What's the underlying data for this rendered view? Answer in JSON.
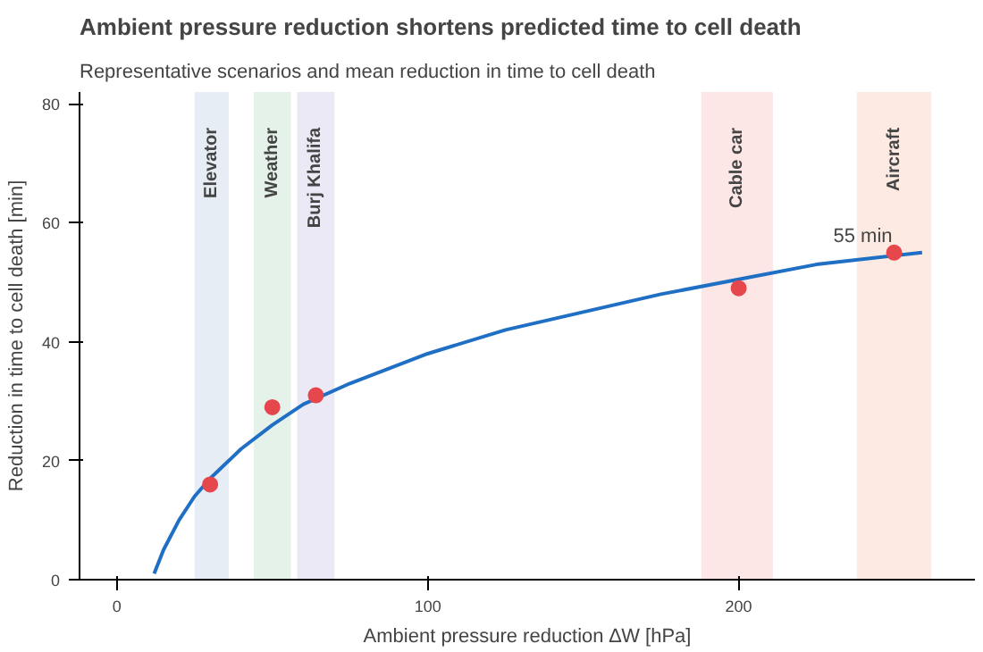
{
  "chart_data": {
    "type": "line",
    "title": "Ambient pressure reduction shortens predicted time to cell death",
    "subtitle": "Representative scenarios and mean reduction in time to cell death",
    "xlabel": "Ambient pressure reduction ∆W [hPa]",
    "ylabel": "Reduction in time to cell death [min]",
    "series": [
      {
        "color": "#1f6fc5",
        "x": [
          12,
          15,
          20,
          25,
          30,
          40,
          50,
          60,
          75,
          100,
          125,
          150,
          175,
          200,
          225,
          259
        ],
        "values": [
          1,
          5,
          10,
          14,
          17,
          22,
          26,
          29.5,
          33,
          38,
          42,
          45,
          48,
          50.5,
          53,
          55
        ]
      },
      {
        "type": "scatter",
        "marker": "circle",
        "color": "#e5474d",
        "x": [
          30,
          50,
          64,
          200,
          250
        ],
        "values": [
          16,
          29,
          31,
          49,
          55
        ]
      }
    ],
    "annotations": [
      {
        "text": "55 min",
        "x": 250,
        "y": 55
      }
    ],
    "bands": [
      {
        "axis": "x",
        "from": 25,
        "to": 36,
        "label": "Elevator",
        "color": "#e6edf5"
      },
      {
        "axis": "x",
        "from": 44,
        "to": 56,
        "label": "Weather",
        "color": "#e5f2ea"
      },
      {
        "axis": "x",
        "from": 58,
        "to": 70,
        "label": "Burj Khalifa",
        "color": "#ebe9f5"
      },
      {
        "axis": "x",
        "from": 188,
        "to": 211,
        "label": "Cable car",
        "color": "#fce6e6"
      },
      {
        "axis": "x",
        "from": 238,
        "to": 262,
        "label": "Aircraft",
        "color": "#fdebe3"
      }
    ],
    "xlim": [
      -12,
      276
    ],
    "ylim": [
      0,
      82
    ],
    "xticks": [
      0,
      100,
      200
    ],
    "yticks": [
      0,
      20,
      40,
      60,
      80
    ],
    "grid": false,
    "line_style": "solid"
  }
}
